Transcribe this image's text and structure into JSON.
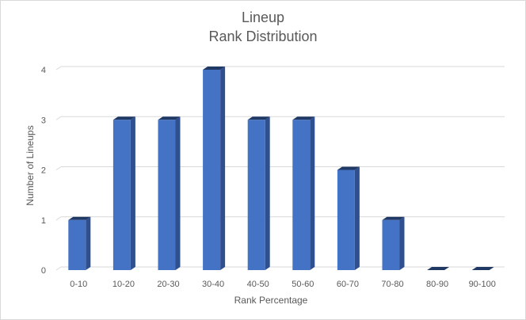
{
  "chart_data": {
    "type": "bar",
    "title": "Lineup",
    "subtitle": "Rank Distribution",
    "xlabel": "Rank Percentage",
    "ylabel": "Number of Lineups",
    "categories": [
      "0-10",
      "10-20",
      "20-30",
      "30-40",
      "40-50",
      "50-60",
      "60-70",
      "70-80",
      "80-90",
      "90-100"
    ],
    "values": [
      1,
      3,
      3,
      4,
      3,
      3,
      2,
      1,
      0,
      0
    ],
    "yticks": [
      "0",
      "1",
      "2",
      "3",
      "4"
    ],
    "ylim": [
      0,
      4
    ],
    "grid": true,
    "legend": "none",
    "colors": {
      "bar_front": "#4472c4",
      "bar_side": "#2f4f8f",
      "bar_top": "#203864",
      "grid": "#d9d9d9"
    }
  }
}
